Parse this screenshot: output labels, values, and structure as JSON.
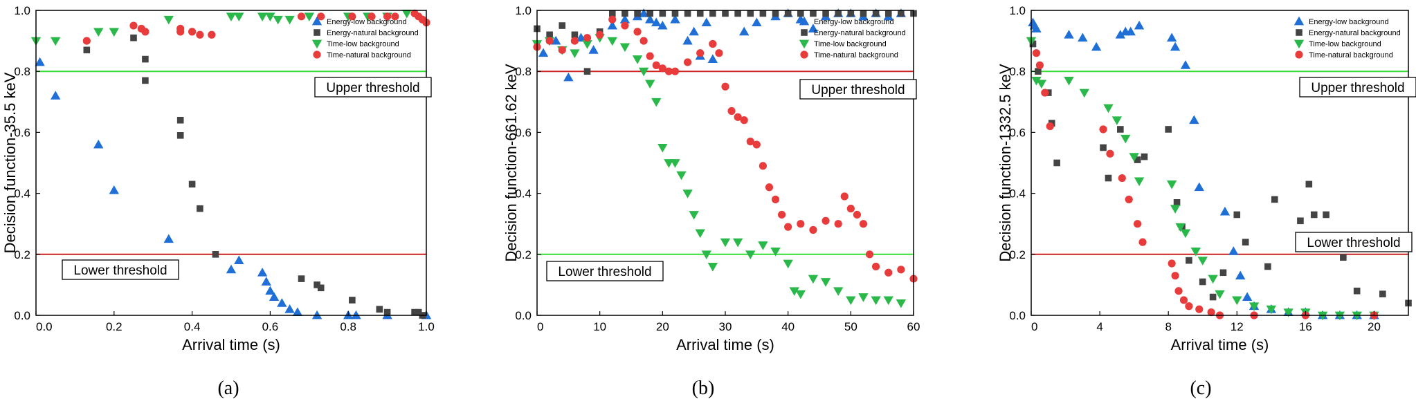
{
  "chart_data": [
    {
      "type": "scatter",
      "panel_label": "(a)",
      "xlabel": "Arrival time (s)",
      "ylabel": "Decision function-35.5 keV",
      "xlim": [
        0,
        1.0
      ],
      "ylim": [
        0,
        1.0
      ],
      "xticks": [
        "0.0",
        "0.2",
        "0.4",
        "0.6",
        "0.8",
        "1.0"
      ],
      "xtick_values": [
        0,
        0.2,
        0.4,
        0.6,
        0.8,
        1.0
      ],
      "yticks": [
        "0.0",
        "0.2",
        "0.4",
        "0.6",
        "0.8",
        "1.0"
      ],
      "ytick_values": [
        0,
        0.2,
        0.4,
        0.6,
        0.8,
        1.0
      ],
      "upper_threshold": {
        "label": "Upper threshold",
        "value": 0.8,
        "color": "#33dd33"
      },
      "lower_threshold": {
        "label": "Lower threshold",
        "value": 0.2,
        "color": "#cc2222"
      },
      "legend_position": "top-right",
      "series": [
        {
          "name": "Energy-low background",
          "marker": "triangle-up",
          "color": "#1f6fd6",
          "x": [
            0.01,
            0.05,
            0.16,
            0.2,
            0.34,
            0.5,
            0.52,
            0.58,
            0.59,
            0.6,
            0.61,
            0.63,
            0.65,
            0.67,
            0.72,
            0.8,
            0.82,
            0.9,
            1.0
          ],
          "y": [
            0.83,
            0.72,
            0.56,
            0.41,
            0.25,
            0.15,
            0.18,
            0.14,
            0.11,
            0.08,
            0.06,
            0.04,
            0.02,
            0.01,
            0.0,
            0.0,
            0.0,
            0.0,
            0.0
          ]
        },
        {
          "name": "Energy-natural background",
          "marker": "square",
          "color": "#444444",
          "x": [
            0.13,
            0.25,
            0.28,
            0.28,
            0.37,
            0.37,
            0.4,
            0.42,
            0.46,
            0.68,
            0.72,
            0.73,
            0.81,
            0.88,
            0.9,
            0.97,
            0.98,
            0.99
          ],
          "y": [
            0.87,
            0.91,
            0.84,
            0.77,
            0.64,
            0.59,
            0.43,
            0.35,
            0.2,
            0.12,
            0.1,
            0.09,
            0.05,
            0.02,
            0.01,
            0.01,
            0.01,
            0.0
          ]
        },
        {
          "name": "Time-low background",
          "marker": "triangle-down",
          "color": "#2bb84a",
          "x": [
            0.0,
            0.05,
            0.16,
            0.2,
            0.34,
            0.5,
            0.52,
            0.58,
            0.6,
            0.62,
            0.65,
            0.7,
            0.8,
            0.85,
            0.9,
            0.95
          ],
          "y": [
            0.9,
            0.9,
            0.93,
            0.93,
            0.97,
            0.98,
            0.98,
            0.98,
            0.98,
            0.97,
            0.97,
            0.98,
            0.98,
            0.98,
            0.98,
            0.99
          ]
        },
        {
          "name": "Time-natural background",
          "marker": "circle",
          "color": "#e83b3b",
          "x": [
            0.13,
            0.25,
            0.27,
            0.28,
            0.37,
            0.37,
            0.4,
            0.42,
            0.45,
            0.68,
            0.73,
            0.81,
            0.86,
            0.9,
            0.92,
            0.97,
            0.98,
            0.99,
            1.0
          ],
          "y": [
            0.9,
            0.95,
            0.94,
            0.93,
            0.94,
            0.93,
            0.93,
            0.92,
            0.92,
            0.98,
            0.98,
            0.98,
            0.98,
            0.98,
            0.98,
            0.99,
            0.98,
            0.97,
            0.96
          ]
        }
      ]
    },
    {
      "type": "scatter",
      "panel_label": "(b)",
      "xlabel": "Arrival time (s)",
      "ylabel": "Decision function-661.62 keV",
      "xlim": [
        0,
        60
      ],
      "ylim": [
        0,
        1.0
      ],
      "xticks": [
        "0",
        "10",
        "20",
        "30",
        "40",
        "50",
        "60"
      ],
      "xtick_values": [
        0,
        10,
        20,
        30,
        40,
        50,
        60
      ],
      "yticks": [
        "0.0",
        "0.2",
        "0.4",
        "0.6",
        "0.8",
        "1.0"
      ],
      "ytick_values": [
        0,
        0.2,
        0.4,
        0.6,
        0.8,
        1.0
      ],
      "upper_threshold": {
        "label": "Upper threshold",
        "value": 0.8,
        "color": "#cc2222"
      },
      "lower_threshold": {
        "label": "Lower threshold",
        "value": 0.2,
        "color": "#33dd33"
      },
      "legend_position": "top-right",
      "series": [
        {
          "name": "Energy-low background",
          "marker": "triangle-up",
          "color": "#1f6fd6",
          "x": [
            1,
            3,
            5,
            7,
            9,
            12,
            14,
            16,
            17,
            18,
            19,
            20,
            22,
            24,
            25,
            26,
            27,
            28,
            33,
            35,
            38,
            40,
            42,
            44,
            46,
            48,
            50,
            52,
            54,
            56,
            58
          ],
          "y": [
            0.86,
            0.9,
            0.78,
            0.91,
            0.87,
            0.95,
            0.97,
            0.98,
            0.99,
            0.97,
            0.96,
            0.95,
            0.97,
            0.9,
            0.93,
            0.85,
            0.96,
            0.84,
            0.93,
            0.96,
            0.98,
            0.99,
            0.97,
            0.94,
            0.98,
            0.99,
            0.99,
            0.98,
            0.99,
            0.98,
            0.99
          ]
        },
        {
          "name": "Energy-natural background",
          "marker": "square",
          "color": "#444444",
          "x": [
            0,
            2,
            4,
            6,
            8,
            10,
            12,
            14,
            16,
            18,
            20,
            22,
            24,
            26,
            28,
            30,
            32,
            34,
            36,
            38,
            40,
            42,
            44,
            46,
            48,
            50,
            52,
            54,
            56,
            58,
            60
          ],
          "y": [
            0.94,
            0.92,
            0.95,
            0.92,
            0.8,
            0.93,
            0.99,
            0.99,
            0.99,
            0.99,
            0.99,
            0.99,
            0.99,
            0.99,
            0.99,
            0.99,
            0.99,
            0.99,
            0.99,
            0.99,
            0.99,
            0.99,
            0.99,
            0.99,
            0.99,
            0.99,
            0.99,
            0.99,
            0.99,
            0.99,
            0.99
          ]
        },
        {
          "name": "Time-low background",
          "marker": "triangle-down",
          "color": "#2bb84a",
          "x": [
            0,
            2,
            4,
            6,
            8,
            10,
            12,
            14,
            16,
            17,
            18,
            19,
            20,
            21,
            22,
            23,
            24,
            25,
            26,
            27,
            28,
            30,
            32,
            34,
            36,
            38,
            40,
            41,
            42,
            44,
            46,
            48,
            50,
            52,
            54,
            56,
            58
          ],
          "y": [
            0.89,
            0.9,
            0.87,
            0.86,
            0.89,
            0.91,
            0.9,
            0.88,
            0.84,
            0.8,
            0.76,
            0.7,
            0.55,
            0.5,
            0.5,
            0.46,
            0.4,
            0.33,
            0.27,
            0.2,
            0.16,
            0.24,
            0.24,
            0.2,
            0.23,
            0.21,
            0.17,
            0.08,
            0.07,
            0.12,
            0.11,
            0.08,
            0.05,
            0.06,
            0.05,
            0.05,
            0.04
          ]
        },
        {
          "name": "Time-natural background",
          "marker": "circle",
          "color": "#e83b3b",
          "x": [
            0,
            2,
            4,
            6,
            8,
            10,
            12,
            14,
            16,
            17,
            18,
            19,
            20,
            21,
            22,
            24,
            26,
            28,
            29,
            30,
            31,
            32,
            33,
            34,
            35,
            36,
            37,
            38,
            39,
            40,
            42,
            44,
            46,
            48,
            49,
            50,
            51,
            52,
            53,
            54,
            56,
            58,
            60
          ],
          "y": [
            0.88,
            0.9,
            0.87,
            0.9,
            0.91,
            0.92,
            0.97,
            0.95,
            0.93,
            0.9,
            0.85,
            0.82,
            0.81,
            0.8,
            0.8,
            0.83,
            0.86,
            0.89,
            0.86,
            0.75,
            0.67,
            0.65,
            0.64,
            0.57,
            0.56,
            0.49,
            0.42,
            0.38,
            0.33,
            0.29,
            0.3,
            0.28,
            0.31,
            0.3,
            0.39,
            0.35,
            0.33,
            0.3,
            0.2,
            0.16,
            0.14,
            0.15,
            0.12
          ]
        }
      ]
    },
    {
      "type": "scatter",
      "panel_label": "(c)",
      "xlabel": "Arrival time (s)",
      "ylabel": "Decision function-1332.5 keV",
      "xlim": [
        0,
        22
      ],
      "ylim": [
        0,
        1.0
      ],
      "xticks": [
        "0",
        "4",
        "8",
        "12",
        "16",
        "20"
      ],
      "xtick_values": [
        0,
        4,
        8,
        12,
        16,
        20
      ],
      "yticks": [
        "0.0",
        "0.2",
        "0.4",
        "0.6",
        "0.8",
        "1.0"
      ],
      "ytick_values": [
        0,
        0.2,
        0.4,
        0.6,
        0.8,
        1.0
      ],
      "upper_threshold": {
        "label": "Upper threshold",
        "value": 0.8,
        "color": "#33dd33"
      },
      "lower_threshold": {
        "label": "Lower threshold",
        "value": 0.2,
        "color": "#cc2222"
      },
      "legend_position": "top-right",
      "series": [
        {
          "name": "Energy-low background",
          "marker": "triangle-up",
          "color": "#1f6fd6",
          "x": [
            0.1,
            0.2,
            0.3,
            2.2,
            3,
            3.8,
            5.2,
            5.5,
            5.8,
            6.3,
            8.2,
            8.4,
            9,
            9.5,
            9.8,
            11.3,
            11.8,
            12.2,
            12.6,
            13,
            14,
            15,
            16,
            17,
            18,
            19,
            20
          ],
          "y": [
            0.96,
            0.95,
            0.94,
            0.92,
            0.91,
            0.88,
            0.92,
            0.93,
            0.93,
            0.95,
            0.91,
            0.88,
            0.82,
            0.64,
            0.42,
            0.34,
            0.21,
            0.13,
            0.06,
            0.03,
            0.02,
            0.01,
            0.01,
            0.0,
            0.0,
            0.0,
            0.0
          ]
        },
        {
          "name": "Energy-natural background",
          "marker": "square",
          "color": "#444444",
          "x": [
            0.1,
            0.4,
            1,
            1.2,
            1.5,
            4.2,
            4.5,
            5.2,
            6.2,
            6.6,
            8,
            8.5,
            8.8,
            9.2,
            10,
            10.6,
            11.2,
            12,
            12.5,
            13.8,
            14.2,
            15.7,
            16.2,
            16.5,
            17.2,
            18.2,
            19,
            20.5,
            22
          ],
          "y": [
            0.89,
            0.8,
            0.73,
            0.63,
            0.5,
            0.55,
            0.45,
            0.61,
            0.51,
            0.52,
            0.61,
            0.37,
            0.29,
            0.18,
            0.11,
            0.06,
            0.14,
            0.33,
            0.24,
            0.16,
            0.38,
            0.31,
            0.43,
            0.33,
            0.33,
            0.19,
            0.08,
            0.07,
            0.04
          ]
        },
        {
          "name": "Time-low background",
          "marker": "triangle-down",
          "color": "#2bb84a",
          "x": [
            0,
            0.3,
            0.6,
            2.2,
            3.1,
            4.5,
            5,
            5.5,
            6,
            6.3,
            8.2,
            8.4,
            8.7,
            9,
            9.6,
            10,
            10.6,
            11,
            12,
            13,
            14,
            15,
            16,
            17,
            18,
            19,
            20
          ],
          "y": [
            0.9,
            0.77,
            0.76,
            0.77,
            0.73,
            0.68,
            0.64,
            0.58,
            0.52,
            0.44,
            0.43,
            0.35,
            0.29,
            0.27,
            0.21,
            0.18,
            0.12,
            0.07,
            0.05,
            0.03,
            0.02,
            0.01,
            0.01,
            0.0,
            0.0,
            0.0,
            0.0
          ]
        },
        {
          "name": "Time-natural background",
          "marker": "circle",
          "color": "#e83b3b",
          "x": [
            0.3,
            0.5,
            0.8,
            1.1,
            4.2,
            4.6,
            5.3,
            5.7,
            6.2,
            6.5,
            8.2,
            8.4,
            8.6,
            8.9,
            9.2,
            9.8,
            10.5,
            11,
            13,
            16,
            20
          ],
          "y": [
            0.86,
            0.82,
            0.73,
            0.62,
            0.61,
            0.53,
            0.45,
            0.38,
            0.3,
            0.24,
            0.17,
            0.13,
            0.08,
            0.05,
            0.03,
            0.02,
            0.01,
            0.0,
            0.0,
            0.0,
            0.0
          ]
        }
      ]
    }
  ]
}
